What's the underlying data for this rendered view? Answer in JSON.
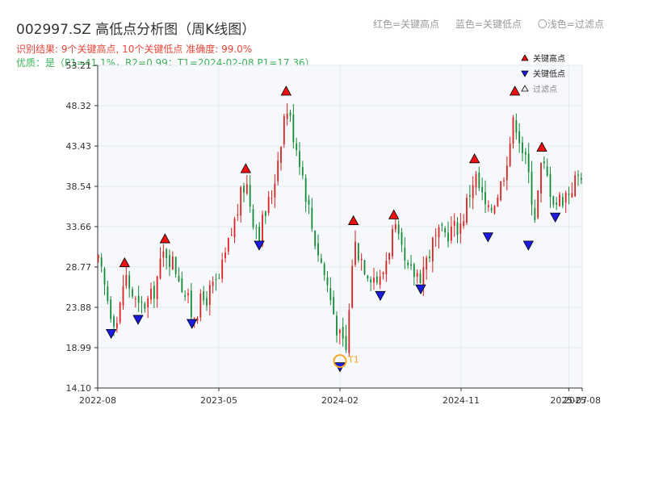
{
  "header": {
    "title": "002997.SZ 高低点分析图（周K线图）",
    "result_line": "识别结果: 9个关键高点, 10个关键低点  准确度: 99.0%",
    "quality_line": "优质：是（P1=41.1%，R2=0.99；T1=2024-02-08 P1=17.36）",
    "legend_top": [
      "红色=关键高点",
      "蓝色=关键低点",
      "〇浅色=过滤点"
    ]
  },
  "chart_data": {
    "type": "candlestick",
    "yticks": [
      14.1,
      18.99,
      23.88,
      28.77,
      33.66,
      38.54,
      43.43,
      48.32,
      53.21
    ],
    "ylim": [
      14.1,
      53.21
    ],
    "xticks": [
      "2022-08",
      "2023-05",
      "2024-02",
      "2024-11",
      "2025-07",
      "2025-08"
    ],
    "xlim": [
      "2022-08",
      "2025-08"
    ],
    "colors": {
      "up": "#dd2020",
      "down": "#138a36",
      "high_marker": "#ee1111",
      "low_marker": "#1a1ae0",
      "t1": "#f5a623"
    },
    "legend": [
      {
        "label": "关键高点",
        "marker": "triangle-up",
        "color": "#ee1111"
      },
      {
        "label": "关键低点",
        "marker": "triangle-down",
        "color": "#1a1ae0"
      },
      {
        "label": "过滤点",
        "marker": "triangle-up-outline",
        "color": "#ffffff"
      }
    ],
    "key_highs": [
      {
        "date": "2022-10",
        "value": 28.6
      },
      {
        "date": "2023-01",
        "value": 31.5
      },
      {
        "date": "2023-07",
        "value": 40.0
      },
      {
        "date": "2023-10",
        "value": 49.4
      },
      {
        "date": "2024-03",
        "value": 33.7
      },
      {
        "date": "2024-06",
        "value": 34.4
      },
      {
        "date": "2024-12",
        "value": 41.2
      },
      {
        "date": "2025-03",
        "value": 49.4
      },
      {
        "date": "2025-05",
        "value": 42.6
      }
    ],
    "key_lows": [
      {
        "date": "2022-09",
        "value": 21.4
      },
      {
        "date": "2022-11",
        "value": 23.1
      },
      {
        "date": "2023-03",
        "value": 22.6
      },
      {
        "date": "2023-08",
        "value": 32.1
      },
      {
        "date": "2024-02",
        "value": 17.36
      },
      {
        "date": "2024-05",
        "value": 26.0
      },
      {
        "date": "2024-08",
        "value": 26.8
      },
      {
        "date": "2025-01",
        "value": 33.1
      },
      {
        "date": "2025-04",
        "value": 32.1
      },
      {
        "date": "2025-06",
        "value": 35.5
      }
    ],
    "t1": {
      "label": "T1",
      "date": "2024-02",
      "value": 17.36
    },
    "candles_note_path": [
      [
        "2022-08",
        29.5
      ],
      [
        "2022-09",
        23.3
      ],
      [
        "2022-09",
        22.0
      ],
      [
        "2022-10",
        28.0
      ],
      [
        "2022-11",
        23.6
      ],
      [
        "2022-12",
        25.0
      ],
      [
        "2023-01",
        31.0
      ],
      [
        "2023-02",
        28.0
      ],
      [
        "2023-02",
        25.5
      ],
      [
        "2023-03",
        23.0
      ],
      [
        "2023-05",
        27.0
      ],
      [
        "2023-07",
        39.5
      ],
      [
        "2023-07",
        35.0
      ],
      [
        "2023-08",
        33.0
      ],
      [
        "2023-09",
        38.0
      ],
      [
        "2023-10",
        48.5
      ],
      [
        "2023-11",
        42.0
      ],
      [
        "2023-12",
        33.0
      ],
      [
        "2024-01",
        27.0
      ],
      [
        "2024-02",
        20.0
      ],
      [
        "2024-02",
        18.5
      ],
      [
        "2024-03",
        32.0
      ],
      [
        "2024-04",
        28.5
      ],
      [
        "2024-05",
        27.0
      ],
      [
        "2024-06",
        33.5
      ],
      [
        "2024-07",
        28.0
      ],
      [
        "2024-08",
        28.0
      ],
      [
        "2024-09",
        32.0
      ],
      [
        "2024-11",
        34.0
      ],
      [
        "2024-12",
        40.0
      ],
      [
        "2025-01",
        35.0
      ],
      [
        "2025-02",
        39.0
      ],
      [
        "2025-03",
        47.0
      ],
      [
        "2025-04",
        40.0
      ],
      [
        "2025-04",
        35.0
      ],
      [
        "2025-05",
        41.5
      ],
      [
        "2025-06",
        36.5
      ],
      [
        "2025-07",
        38.0
      ],
      [
        "2025-08",
        40.5
      ]
    ]
  }
}
